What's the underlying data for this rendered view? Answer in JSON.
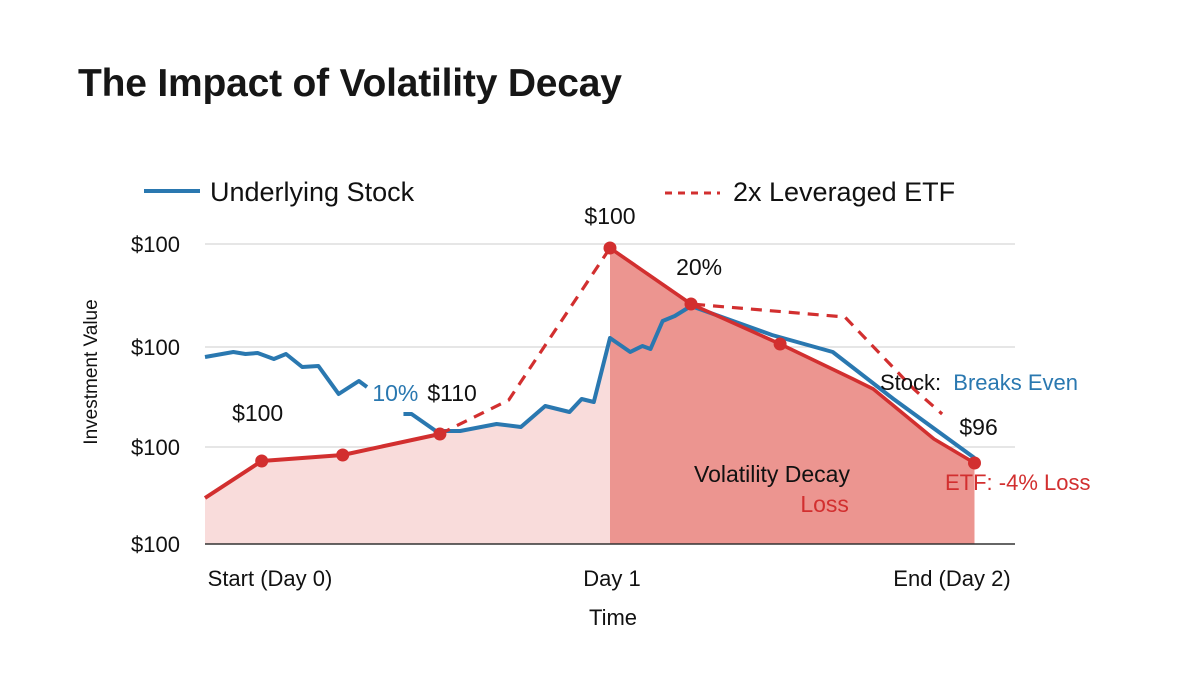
{
  "title": "The Impact of Volatility Decay",
  "colors": {
    "stock": "#2a78b0",
    "etf": "#d22f2f",
    "fill_light": "#f9dcdb",
    "fill_dark": "#ec9590",
    "grid": "#d6d6d6",
    "axis": "#333333",
    "text": "#111111"
  },
  "chart_data": {
    "type": "line",
    "title": "The Impact of Volatility Decay",
    "xlabel": "Time",
    "ylabel": "Investment Value",
    "xlim": [
      0,
      2
    ],
    "ylim": [
      0,
      3
    ],
    "grid": true,
    "x_ticks": [
      {
        "x": 0,
        "label": "Start (Day 0)"
      },
      {
        "x": 1,
        "label": "Day 1"
      },
      {
        "x": 2,
        "label": "End (Day 2)"
      }
    ],
    "y_ticks": [
      {
        "y": 3,
        "label": "$100"
      },
      {
        "y": 1.97,
        "label": "$100"
      },
      {
        "y": 0.97,
        "label": "$100"
      },
      {
        "y": 0,
        "label": "$100"
      }
    ],
    "legend": {
      "placement": "top",
      "entries": [
        {
          "name": "Underlying Stock",
          "style": "solid",
          "color": "#2a78b0"
        },
        {
          "name": "2x Leveraged ETF",
          "style": "dashed",
          "color": "#d22f2f"
        }
      ]
    },
    "series": [
      {
        "name": "Underlying Stock",
        "style": "solid",
        "color": "#2a78b0",
        "segments": [
          [
            [
              0.0,
              1.87
            ],
            [
              0.07,
              1.92
            ],
            [
              0.1,
              1.9
            ],
            [
              0.13,
              1.91
            ],
            [
              0.17,
              1.85
            ],
            [
              0.2,
              1.9
            ],
            [
              0.24,
              1.77
            ],
            [
              0.28,
              1.78
            ],
            [
              0.33,
              1.5
            ],
            [
              0.38,
              1.63
            ],
            [
              0.4,
              1.57
            ]
          ],
          [
            [
              0.49,
              1.3
            ],
            [
              0.51,
              1.3
            ],
            [
              0.57,
              1.13
            ],
            [
              0.63,
              1.13
            ],
            [
              0.72,
              1.2
            ],
            [
              0.78,
              1.17
            ],
            [
              0.84,
              1.38
            ],
            [
              0.9,
              1.32
            ],
            [
              0.93,
              1.45
            ],
            [
              0.96,
              1.42
            ],
            [
              1.0,
              2.06
            ],
            [
              1.05,
              1.92
            ],
            [
              1.08,
              1.98
            ],
            [
              1.1,
              1.95
            ],
            [
              1.13,
              2.23
            ],
            [
              1.16,
              2.28
            ],
            [
              1.2,
              2.38
            ],
            [
              1.4,
              2.09
            ],
            [
              1.55,
              1.92
            ],
            [
              1.7,
              1.45
            ],
            [
              1.9,
              0.86
            ]
          ]
        ]
      },
      {
        "name": "2x Leveraged ETF",
        "style": "solid",
        "color": "#d22f2f",
        "points": [
          [
            0.0,
            0.46
          ],
          [
            0.14,
            0.83
          ],
          [
            0.34,
            0.89
          ],
          [
            0.58,
            1.1
          ]
        ]
      },
      {
        "name": "2x Leveraged ETF (projected)",
        "style": "dashed",
        "color": "#d22f2f",
        "points": [
          [
            0.58,
            1.1
          ],
          [
            0.75,
            1.44
          ],
          [
            1.0,
            2.96
          ],
          [
            1.2,
            2.4
          ],
          [
            1.58,
            2.27
          ],
          [
            1.75,
            1.55
          ],
          [
            1.82,
            1.3
          ]
        ]
      },
      {
        "name": "2x Leveraged ETF (day 1-2)",
        "style": "solid",
        "color": "#d22f2f",
        "points": [
          [
            1.0,
            2.96
          ],
          [
            1.2,
            2.4
          ],
          [
            1.42,
            2.0
          ],
          [
            1.6,
            1.65
          ],
          [
            1.65,
            1.55
          ],
          [
            1.8,
            1.05
          ],
          [
            1.9,
            0.81
          ]
        ]
      }
    ],
    "markers": [
      {
        "x": 0.14,
        "y": 0.83
      },
      {
        "x": 0.34,
        "y": 0.89
      },
      {
        "x": 0.58,
        "y": 1.1
      },
      {
        "x": 1.0,
        "y": 2.96
      },
      {
        "x": 1.2,
        "y": 2.4
      },
      {
        "x": 1.42,
        "y": 2.0
      },
      {
        "x": 1.9,
        "y": 0.81
      }
    ],
    "shaded_regions": [
      {
        "name": "pre-day1-fill",
        "x_from": 0,
        "x_to": 1.0,
        "color": "#f9dcdb"
      },
      {
        "name": "volatility-decay-loss",
        "x_from": 1.0,
        "x_to": 1.9,
        "color": "#ec9590"
      }
    ],
    "annotations": [
      {
        "id": "a-start",
        "text": "$100",
        "x": 0.13,
        "y": 1.23,
        "color": "#111111"
      },
      {
        "id": "a-10pct",
        "text": "10%",
        "x": 0.47,
        "y": 1.43,
        "color": "#2a78b0"
      },
      {
        "id": "a-110",
        "text": "$110",
        "x": 0.61,
        "y": 1.43,
        "color": "#111111"
      },
      {
        "id": "a-peak",
        "text": "$100",
        "x": 1.0,
        "y": 3.2,
        "color": "#111111"
      },
      {
        "id": "a-20pct",
        "text": "20%",
        "x": 1.22,
        "y": 2.69,
        "color": "#111111"
      },
      {
        "id": "a-96",
        "text": "$96",
        "x": 1.91,
        "y": 1.09,
        "color": "#111111"
      },
      {
        "id": "a-decay",
        "text": "Volatility Decay",
        "x": 1.4,
        "y": 0.62,
        "color": "#111111"
      },
      {
        "id": "a-loss",
        "text": "Loss",
        "x": 1.53,
        "y": 0.32,
        "color": "#d22f2f"
      }
    ],
    "callouts": {
      "stock_label": "Stock:",
      "stock_value": "Breaks Even",
      "etf_label": "ETF: -4% Loss"
    }
  }
}
